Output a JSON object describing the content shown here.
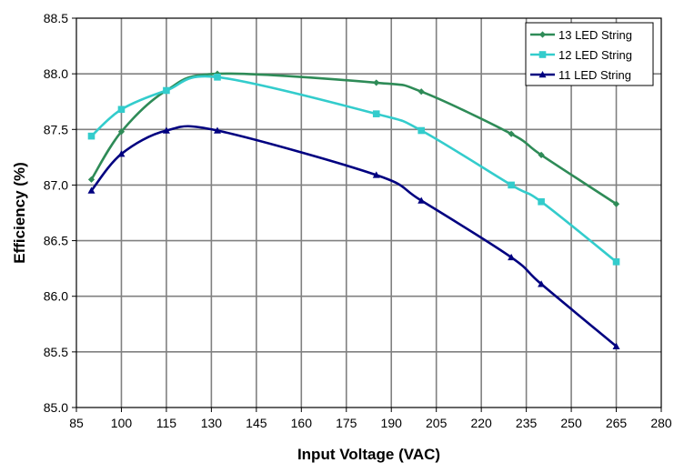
{
  "chart_data": {
    "type": "line",
    "title": "",
    "xlabel": "Input Voltage (VAC)",
    "ylabel": "Efficiency (%)",
    "xlim": [
      85,
      280
    ],
    "ylim": [
      85.0,
      88.5
    ],
    "xticks": [
      85,
      100,
      115,
      130,
      145,
      160,
      175,
      190,
      205,
      220,
      235,
      250,
      265,
      280
    ],
    "xtick_labels": [
      "85",
      "100",
      "115",
      "130",
      "145",
      "160",
      "175",
      "190",
      "205",
      "220",
      "235",
      "250",
      "265",
      "280"
    ],
    "yticks": [
      85.0,
      85.5,
      86.0,
      86.5,
      87.0,
      87.5,
      88.0,
      88.5
    ],
    "ytick_labels": [
      "85.0",
      "85.5",
      "86.0",
      "86.5",
      "87.0",
      "87.5",
      "88.0",
      "88.5"
    ],
    "grid": true,
    "legend_position": "top-right",
    "series": [
      {
        "name": "13 LED String",
        "color": "#2e8b57",
        "marker": "diamond",
        "x": [
          90,
          100,
          115,
          132,
          185,
          200,
          230,
          240,
          265
        ],
        "y": [
          87.05,
          87.48,
          87.85,
          88.0,
          87.92,
          87.84,
          87.46,
          87.27,
          86.83
        ]
      },
      {
        "name": "12 LED String",
        "color": "#33cccc",
        "marker": "square",
        "x": [
          90,
          100,
          115,
          132,
          185,
          200,
          230,
          240,
          265
        ],
        "y": [
          87.44,
          87.68,
          87.85,
          87.97,
          87.64,
          87.49,
          87.0,
          86.85,
          86.31
        ]
      },
      {
        "name": "11 LED String",
        "color": "#000080",
        "marker": "triangle",
        "x": [
          90,
          100,
          115,
          132,
          185,
          200,
          230,
          240,
          265
        ],
        "y": [
          86.95,
          87.28,
          87.49,
          87.49,
          87.09,
          86.86,
          86.35,
          86.11,
          85.55
        ]
      }
    ]
  }
}
